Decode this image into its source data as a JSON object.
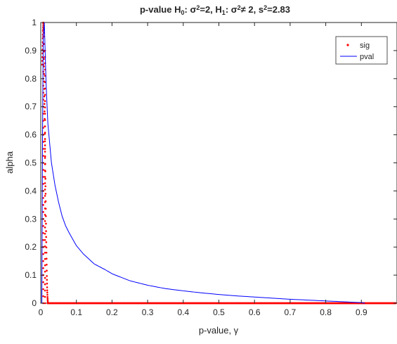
{
  "chart_data": {
    "type": "line",
    "title": {
      "parts": [
        {
          "t": "p-value H"
        },
        {
          "t": "0",
          "sub": true
        },
        {
          "t": ": σ"
        },
        {
          "t": "2",
          "sup": true
        },
        {
          "t": "=2, H"
        },
        {
          "t": "1",
          "sub": true
        },
        {
          "t": ": σ"
        },
        {
          "t": "2",
          "sup": true
        },
        {
          "t": "≠ 2, s"
        },
        {
          "t": "2",
          "sup": true
        },
        {
          "t": "=2.83"
        }
      ]
    },
    "xlabel": "p-value, γ",
    "ylabel": "alpha",
    "xlim": [
      0,
      1
    ],
    "ylim": [
      0,
      1
    ],
    "xticks": [
      0,
      0.1,
      0.2,
      0.3,
      0.4,
      0.5,
      0.6,
      0.7,
      0.8,
      0.9
    ],
    "xtick_labels": [
      "0",
      "0.1",
      "0.2",
      "0.3",
      "0.4",
      "0.5",
      "0.6",
      "0.7",
      "0.8",
      "0.9"
    ],
    "yticks": [
      0,
      0.1,
      0.2,
      0.3,
      0.4,
      0.5,
      0.6,
      0.7,
      0.8,
      0.9,
      1
    ],
    "ytick_labels": [
      "0",
      "0.1",
      "0.2",
      "0.3",
      "0.4",
      "0.5",
      "0.6",
      "0.7",
      "0.8",
      "0.9",
      "1"
    ],
    "grid": false,
    "legend_position": "top-right",
    "series": [
      {
        "name": "sig",
        "style": "markers",
        "color": "#ff0000",
        "x": [
          0.004,
          0.005,
          0.006,
          0.007,
          0.008,
          0.009,
          0.01,
          0.011,
          0.012,
          0.013,
          0.014,
          0.015,
          0.016,
          0.017,
          0.018,
          0.019,
          0.02,
          0.05,
          0.1,
          0.15,
          0.2,
          0.25,
          0.3,
          0.35,
          0.4,
          0.45,
          0.5,
          0.55,
          0.6,
          0.65,
          0.7,
          0.75,
          0.8,
          0.85,
          0.9,
          0.95,
          1.0
        ],
        "y": [
          0.85,
          0.9,
          0.95,
          1.0,
          0.95,
          0.85,
          0.75,
          0.65,
          0.55,
          0.45,
          0.35,
          0.25,
          0.18,
          0.1,
          0.05,
          0.02,
          0.0,
          0,
          0,
          0,
          0,
          0,
          0,
          0,
          0,
          0,
          0,
          0,
          0,
          0,
          0,
          0,
          0,
          0,
          0,
          0,
          0
        ]
      },
      {
        "name": "pval",
        "style": "line",
        "color": "#0000ff",
        "x": [
          0.003,
          0.005,
          0.007,
          0.01,
          0.015,
          0.02,
          0.03,
          0.04,
          0.05,
          0.06,
          0.07,
          0.08,
          0.1,
          0.12,
          0.15,
          0.18,
          0.2,
          0.25,
          0.3,
          0.35,
          0.4,
          0.45,
          0.5,
          0.55,
          0.6,
          0.65,
          0.7,
          0.75,
          0.8,
          0.85,
          0.9,
          0.91
        ],
        "y": [
          0.0,
          0.6,
          0.95,
          1.0,
          0.78,
          0.64,
          0.5,
          0.42,
          0.36,
          0.31,
          0.275,
          0.25,
          0.205,
          0.175,
          0.14,
          0.12,
          0.105,
          0.08,
          0.064,
          0.052,
          0.044,
          0.037,
          0.031,
          0.026,
          0.022,
          0.018,
          0.014,
          0.011,
          0.008,
          0.005,
          0.002,
          0.0
        ]
      }
    ]
  }
}
